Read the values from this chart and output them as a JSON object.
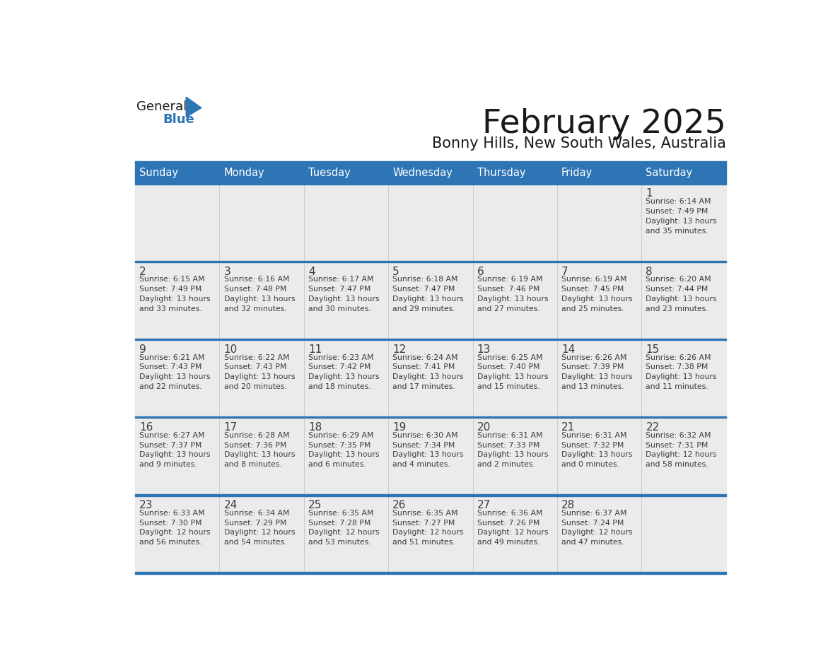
{
  "title": "February 2025",
  "subtitle": "Bonny Hills, New South Wales, Australia",
  "header_bg": "#2E75B6",
  "header_text": "#FFFFFF",
  "cell_bg_odd": "#EBEBEB",
  "cell_bg_even": "#FFFFFF",
  "border_color": "#2E75B6",
  "text_color": "#3C3C3C",
  "days_of_week": [
    "Sunday",
    "Monday",
    "Tuesday",
    "Wednesday",
    "Thursday",
    "Friday",
    "Saturday"
  ],
  "calendar_data": [
    [
      null,
      null,
      null,
      null,
      null,
      null,
      {
        "day": 1,
        "sunrise": "6:14 AM",
        "sunset": "7:49 PM",
        "daylight_line1": "Daylight: 13 hours",
        "daylight_line2": "and 35 minutes."
      }
    ],
    [
      {
        "day": 2,
        "sunrise": "6:15 AM",
        "sunset": "7:49 PM",
        "daylight_line1": "Daylight: 13 hours",
        "daylight_line2": "and 33 minutes."
      },
      {
        "day": 3,
        "sunrise": "6:16 AM",
        "sunset": "7:48 PM",
        "daylight_line1": "Daylight: 13 hours",
        "daylight_line2": "and 32 minutes."
      },
      {
        "day": 4,
        "sunrise": "6:17 AM",
        "sunset": "7:47 PM",
        "daylight_line1": "Daylight: 13 hours",
        "daylight_line2": "and 30 minutes."
      },
      {
        "day": 5,
        "sunrise": "6:18 AM",
        "sunset": "7:47 PM",
        "daylight_line1": "Daylight: 13 hours",
        "daylight_line2": "and 29 minutes."
      },
      {
        "day": 6,
        "sunrise": "6:19 AM",
        "sunset": "7:46 PM",
        "daylight_line1": "Daylight: 13 hours",
        "daylight_line2": "and 27 minutes."
      },
      {
        "day": 7,
        "sunrise": "6:19 AM",
        "sunset": "7:45 PM",
        "daylight_line1": "Daylight: 13 hours",
        "daylight_line2": "and 25 minutes."
      },
      {
        "day": 8,
        "sunrise": "6:20 AM",
        "sunset": "7:44 PM",
        "daylight_line1": "Daylight: 13 hours",
        "daylight_line2": "and 23 minutes."
      }
    ],
    [
      {
        "day": 9,
        "sunrise": "6:21 AM",
        "sunset": "7:43 PM",
        "daylight_line1": "Daylight: 13 hours",
        "daylight_line2": "and 22 minutes."
      },
      {
        "day": 10,
        "sunrise": "6:22 AM",
        "sunset": "7:43 PM",
        "daylight_line1": "Daylight: 13 hours",
        "daylight_line2": "and 20 minutes."
      },
      {
        "day": 11,
        "sunrise": "6:23 AM",
        "sunset": "7:42 PM",
        "daylight_line1": "Daylight: 13 hours",
        "daylight_line2": "and 18 minutes."
      },
      {
        "day": 12,
        "sunrise": "6:24 AM",
        "sunset": "7:41 PM",
        "daylight_line1": "Daylight: 13 hours",
        "daylight_line2": "and 17 minutes."
      },
      {
        "day": 13,
        "sunrise": "6:25 AM",
        "sunset": "7:40 PM",
        "daylight_line1": "Daylight: 13 hours",
        "daylight_line2": "and 15 minutes."
      },
      {
        "day": 14,
        "sunrise": "6:26 AM",
        "sunset": "7:39 PM",
        "daylight_line1": "Daylight: 13 hours",
        "daylight_line2": "and 13 minutes."
      },
      {
        "day": 15,
        "sunrise": "6:26 AM",
        "sunset": "7:38 PM",
        "daylight_line1": "Daylight: 13 hours",
        "daylight_line2": "and 11 minutes."
      }
    ],
    [
      {
        "day": 16,
        "sunrise": "6:27 AM",
        "sunset": "7:37 PM",
        "daylight_line1": "Daylight: 13 hours",
        "daylight_line2": "and 9 minutes."
      },
      {
        "day": 17,
        "sunrise": "6:28 AM",
        "sunset": "7:36 PM",
        "daylight_line1": "Daylight: 13 hours",
        "daylight_line2": "and 8 minutes."
      },
      {
        "day": 18,
        "sunrise": "6:29 AM",
        "sunset": "7:35 PM",
        "daylight_line1": "Daylight: 13 hours",
        "daylight_line2": "and 6 minutes."
      },
      {
        "day": 19,
        "sunrise": "6:30 AM",
        "sunset": "7:34 PM",
        "daylight_line1": "Daylight: 13 hours",
        "daylight_line2": "and 4 minutes."
      },
      {
        "day": 20,
        "sunrise": "6:31 AM",
        "sunset": "7:33 PM",
        "daylight_line1": "Daylight: 13 hours",
        "daylight_line2": "and 2 minutes."
      },
      {
        "day": 21,
        "sunrise": "6:31 AM",
        "sunset": "7:32 PM",
        "daylight_line1": "Daylight: 13 hours",
        "daylight_line2": "and 0 minutes."
      },
      {
        "day": 22,
        "sunrise": "6:32 AM",
        "sunset": "7:31 PM",
        "daylight_line1": "Daylight: 12 hours",
        "daylight_line2": "and 58 minutes."
      }
    ],
    [
      {
        "day": 23,
        "sunrise": "6:33 AM",
        "sunset": "7:30 PM",
        "daylight_line1": "Daylight: 12 hours",
        "daylight_line2": "and 56 minutes."
      },
      {
        "day": 24,
        "sunrise": "6:34 AM",
        "sunset": "7:29 PM",
        "daylight_line1": "Daylight: 12 hours",
        "daylight_line2": "and 54 minutes."
      },
      {
        "day": 25,
        "sunrise": "6:35 AM",
        "sunset": "7:28 PM",
        "daylight_line1": "Daylight: 12 hours",
        "daylight_line2": "and 53 minutes."
      },
      {
        "day": 26,
        "sunrise": "6:35 AM",
        "sunset": "7:27 PM",
        "daylight_line1": "Daylight: 12 hours",
        "daylight_line2": "and 51 minutes."
      },
      {
        "day": 27,
        "sunrise": "6:36 AM",
        "sunset": "7:26 PM",
        "daylight_line1": "Daylight: 12 hours",
        "daylight_line2": "and 49 minutes."
      },
      {
        "day": 28,
        "sunrise": "6:37 AM",
        "sunset": "7:24 PM",
        "daylight_line1": "Daylight: 12 hours",
        "daylight_line2": "and 47 minutes."
      },
      null
    ]
  ]
}
